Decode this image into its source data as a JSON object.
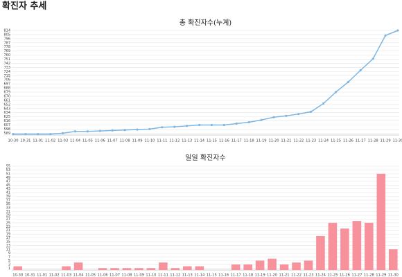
{
  "page_title": "확진자 추세",
  "chart_data": [
    {
      "type": "line",
      "title": "총 확진자수(누계)",
      "color": "#7db6e3",
      "grid": true,
      "categories": [
        "10-30",
        "10-31",
        "11-01",
        "11-02",
        "11-03",
        "11-04",
        "11-05",
        "11-06",
        "11-07",
        "11-08",
        "11-09",
        "11-10",
        "11-11",
        "11-12",
        "11-13",
        "11-14",
        "11-15",
        "11-16",
        "11-17",
        "11-18",
        "11-19",
        "11-20",
        "11-21",
        "11-22",
        "11-23",
        "11-24",
        "11-25",
        "11-26",
        "11-27",
        "11-28",
        "11-29",
        "11-30"
      ],
      "values": [
        587,
        587,
        587,
        587,
        589,
        593,
        593,
        594,
        595,
        596,
        597,
        598,
        602,
        603,
        605,
        607,
        607,
        607,
        610,
        613,
        618,
        624,
        627,
        631,
        636,
        654,
        679,
        701,
        727,
        752,
        803,
        814
      ],
      "ylim": [
        585,
        814
      ],
      "yticks": [
        589,
        598,
        607,
        616,
        625,
        634,
        643,
        652,
        661,
        670,
        679,
        688,
        697,
        706,
        715,
        724,
        733,
        742,
        751,
        760,
        769,
        778,
        787,
        796,
        805,
        814
      ]
    },
    {
      "type": "bar",
      "title": "일일 확진자수",
      "color": "#f7929c",
      "grid": true,
      "categories": [
        "10-30",
        "10-31",
        "11-01",
        "11-02",
        "11-03",
        "11-04",
        "11-05",
        "11-06",
        "11-07",
        "11-08",
        "11-09",
        "11-10",
        "11-11",
        "11-12",
        "11-13",
        "11-14",
        "11-15",
        "11-16",
        "11-17",
        "11-18",
        "11-19",
        "11-20",
        "11-21",
        "11-22",
        "11-23",
        "11-24",
        "11-25",
        "11-26",
        "11-27",
        "11-28",
        "11-29",
        "11-30"
      ],
      "values": [
        2,
        0,
        0,
        0,
        2,
        4,
        0,
        1,
        1,
        1,
        1,
        1,
        4,
        1,
        2,
        2,
        0,
        0,
        3,
        3,
        5,
        6,
        3,
        4,
        5,
        18,
        25,
        22,
        26,
        25,
        51,
        11
      ],
      "ylim": [
        0,
        55
      ],
      "yticks": [
        1,
        3,
        5,
        7,
        9,
        11,
        13,
        15,
        17,
        19,
        21,
        23,
        25,
        27,
        29,
        31,
        33,
        35,
        37,
        39,
        41,
        43,
        45,
        47,
        49,
        51,
        53,
        55
      ]
    }
  ]
}
